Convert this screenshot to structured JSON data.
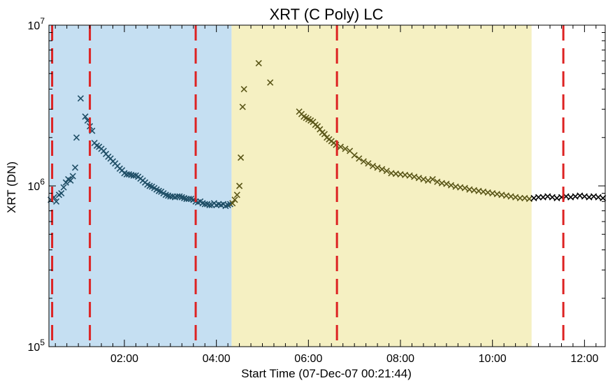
{
  "chart_data": {
    "type": "scatter",
    "title": "XRT (C Poly) LC",
    "xlabel": "Start Time (07-Dec-07 00:21:44)",
    "ylabel": "XRT (DN)",
    "yscale": "log",
    "xlim_hours": [
      0.36,
      12.45
    ],
    "ylim": [
      100000,
      10000000
    ],
    "x_ticks": [
      {
        "value": 2,
        "label": "02:00"
      },
      {
        "value": 4,
        "label": "04:00"
      },
      {
        "value": 6,
        "label": "06:00"
      },
      {
        "value": 8,
        "label": "08:00"
      },
      {
        "value": 10,
        "label": "10:00"
      },
      {
        "value": 12,
        "label": "12:00"
      }
    ],
    "y_ticks": [
      {
        "value": 100000,
        "base": "10",
        "exp": "5"
      },
      {
        "value": 1000000,
        "base": "10",
        "exp": "6"
      },
      {
        "value": 10000000,
        "base": "10",
        "exp": "7"
      }
    ],
    "marker": "x",
    "shaded_intervals": [
      {
        "x_start": 0.36,
        "x_end": 4.33,
        "color": "#c5dff2"
      },
      {
        "x_start": 4.33,
        "x_end": 10.85,
        "color": "#f5f0c2"
      }
    ],
    "vertical_lines": {
      "x": [
        0.43,
        1.25,
        3.55,
        6.62,
        11.54
      ],
      "color": "#dd2222",
      "style": "dashed"
    },
    "series": [
      {
        "color": "#1f4e66",
        "points": [
          [
            0.4,
            820000
          ],
          [
            0.47,
            850000
          ],
          [
            0.52,
            800000
          ],
          [
            0.58,
            880000
          ],
          [
            0.63,
            900000
          ],
          [
            0.68,
            980000
          ],
          [
            0.73,
            1050000
          ],
          [
            0.78,
            1100000
          ],
          [
            0.83,
            1080000
          ],
          [
            0.88,
            1150000
          ],
          [
            0.93,
            1300000
          ],
          [
            0.96,
            2000000
          ],
          [
            1.05,
            3500000
          ],
          [
            1.15,
            2700000
          ],
          [
            1.2,
            2550000
          ],
          [
            1.25,
            2350000
          ],
          [
            1.3,
            2200000
          ],
          [
            1.35,
            1850000
          ],
          [
            1.4,
            1780000
          ],
          [
            1.45,
            1750000
          ],
          [
            1.5,
            1700000
          ],
          [
            1.55,
            1650000
          ],
          [
            1.6,
            1580000
          ],
          [
            1.65,
            1520000
          ],
          [
            1.7,
            1480000
          ],
          [
            1.75,
            1420000
          ],
          [
            1.8,
            1380000
          ],
          [
            1.85,
            1330000
          ],
          [
            1.9,
            1280000
          ],
          [
            1.95,
            1250000
          ],
          [
            2.0,
            1200000
          ],
          [
            2.05,
            1180000
          ],
          [
            2.1,
            1180000
          ],
          [
            2.15,
            1170000
          ],
          [
            2.2,
            1160000
          ],
          [
            2.25,
            1160000
          ],
          [
            2.3,
            1140000
          ],
          [
            2.35,
            1110000
          ],
          [
            2.4,
            1080000
          ],
          [
            2.45,
            1050000
          ],
          [
            2.5,
            1020000
          ],
          [
            2.55,
            1000000
          ],
          [
            2.6,
            990000
          ],
          [
            2.65,
            970000
          ],
          [
            2.7,
            950000
          ],
          [
            2.75,
            930000
          ],
          [
            2.8,
            920000
          ],
          [
            2.85,
            900000
          ],
          [
            2.9,
            880000
          ],
          [
            2.95,
            870000
          ],
          [
            3.0,
            860000
          ],
          [
            3.05,
            860000
          ],
          [
            3.1,
            850000
          ],
          [
            3.15,
            860000
          ],
          [
            3.2,
            860000
          ],
          [
            3.25,
            850000
          ],
          [
            3.3,
            840000
          ],
          [
            3.35,
            830000
          ],
          [
            3.4,
            830000
          ],
          [
            3.45,
            830000
          ],
          [
            3.5,
            820000
          ],
          [
            3.55,
            800000
          ],
          [
            3.6,
            790000
          ],
          [
            3.65,
            800000
          ],
          [
            3.7,
            780000
          ],
          [
            3.75,
            770000
          ],
          [
            3.8,
            770000
          ],
          [
            3.85,
            760000
          ],
          [
            3.9,
            760000
          ],
          [
            3.95,
            780000
          ],
          [
            4.0,
            760000
          ],
          [
            4.05,
            770000
          ],
          [
            4.1,
            760000
          ],
          [
            4.15,
            770000
          ],
          [
            4.2,
            750000
          ],
          [
            4.25,
            760000
          ],
          [
            4.3,
            770000
          ]
        ]
      },
      {
        "color": "#5a5618",
        "points": [
          [
            4.35,
            780000
          ],
          [
            4.4,
            820000
          ],
          [
            4.45,
            880000
          ],
          [
            4.5,
            1000000
          ],
          [
            4.53,
            1500000
          ],
          [
            4.57,
            3100000
          ],
          [
            4.6,
            4000000
          ],
          [
            4.92,
            5800000
          ],
          [
            5.17,
            4400000
          ],
          [
            5.8,
            2900000
          ],
          [
            5.85,
            2800000
          ],
          [
            5.9,
            2700000
          ],
          [
            5.95,
            2650000
          ],
          [
            6.0,
            2600000
          ],
          [
            6.05,
            2550000
          ],
          [
            6.1,
            2500000
          ],
          [
            6.15,
            2400000
          ],
          [
            6.2,
            2350000
          ],
          [
            6.25,
            2250000
          ],
          [
            6.3,
            2150000
          ],
          [
            6.35,
            2100000
          ],
          [
            6.4,
            2000000
          ],
          [
            6.45,
            1950000
          ],
          [
            6.5,
            1900000
          ],
          [
            6.55,
            1850000
          ],
          [
            6.6,
            1800000
          ],
          [
            6.7,
            1750000
          ],
          [
            6.8,
            1700000
          ],
          [
            6.9,
            1650000
          ],
          [
            7.0,
            1550000
          ],
          [
            7.1,
            1480000
          ],
          [
            7.2,
            1420000
          ],
          [
            7.3,
            1380000
          ],
          [
            7.4,
            1330000
          ],
          [
            7.5,
            1300000
          ],
          [
            7.6,
            1270000
          ],
          [
            7.7,
            1240000
          ],
          [
            7.8,
            1200000
          ],
          [
            7.9,
            1190000
          ],
          [
            8.0,
            1180000
          ],
          [
            8.1,
            1170000
          ],
          [
            8.2,
            1160000
          ],
          [
            8.3,
            1140000
          ],
          [
            8.4,
            1120000
          ],
          [
            8.5,
            1100000
          ],
          [
            8.6,
            1080000
          ],
          [
            8.7,
            1100000
          ],
          [
            8.8,
            1060000
          ],
          [
            8.9,
            1040000
          ],
          [
            9.0,
            1030000
          ],
          [
            9.1,
            1010000
          ],
          [
            9.2,
            990000
          ],
          [
            9.3,
            980000
          ],
          [
            9.4,
            970000
          ],
          [
            9.5,
            950000
          ],
          [
            9.6,
            940000
          ],
          [
            9.7,
            930000
          ],
          [
            9.8,
            920000
          ],
          [
            9.9,
            910000
          ],
          [
            10.0,
            900000
          ],
          [
            10.1,
            890000
          ],
          [
            10.2,
            880000
          ],
          [
            10.3,
            870000
          ],
          [
            10.4,
            860000
          ],
          [
            10.5,
            850000
          ],
          [
            10.6,
            840000
          ],
          [
            10.7,
            840000
          ],
          [
            10.8,
            830000
          ]
        ]
      },
      {
        "color": "#000000",
        "points": [
          [
            10.9,
            840000
          ],
          [
            11.0,
            850000
          ],
          [
            11.1,
            850000
          ],
          [
            11.2,
            860000
          ],
          [
            11.3,
            850000
          ],
          [
            11.4,
            840000
          ],
          [
            11.5,
            850000
          ],
          [
            11.6,
            860000
          ],
          [
            11.7,
            850000
          ],
          [
            11.8,
            860000
          ],
          [
            11.9,
            870000
          ],
          [
            12.0,
            860000
          ],
          [
            12.1,
            850000
          ],
          [
            12.2,
            860000
          ],
          [
            12.3,
            850000
          ],
          [
            12.4,
            840000
          ]
        ]
      }
    ]
  }
}
